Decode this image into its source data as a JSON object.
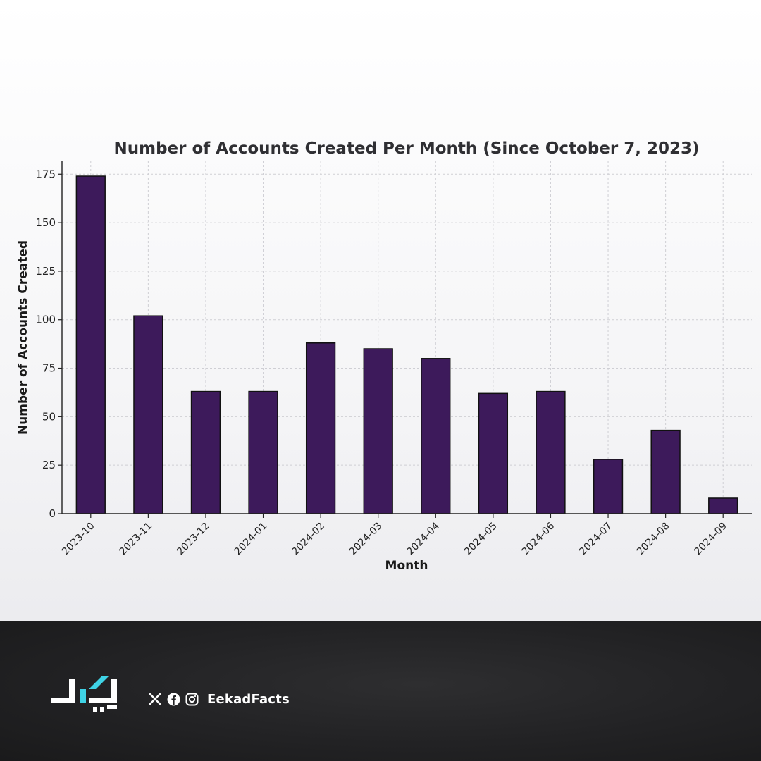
{
  "chart_data": {
    "type": "bar",
    "title": "Number of Accounts Created Per Month (Since October 7, 2023)",
    "xlabel": "Month",
    "ylabel": "Number of Accounts Created",
    "categories": [
      "2023-10",
      "2023-11",
      "2023-12",
      "2024-01",
      "2024-02",
      "2024-03",
      "2024-04",
      "2024-05",
      "2024-06",
      "2024-07",
      "2024-08",
      "2024-09"
    ],
    "values": [
      174,
      102,
      63,
      63,
      88,
      85,
      80,
      62,
      63,
      28,
      43,
      8
    ],
    "ylim": [
      0,
      182
    ],
    "yticks": [
      0,
      25,
      50,
      75,
      100,
      125,
      150,
      175
    ],
    "grid": true,
    "bar_color": "#3d1a5b",
    "bar_edge_color": "#111111"
  },
  "footer": {
    "handle": "EekadFacts",
    "icons": [
      "x-icon",
      "facebook-icon",
      "instagram-icon"
    ],
    "background_color": "#222224",
    "logo_accent_color": "#3fd3e6"
  }
}
